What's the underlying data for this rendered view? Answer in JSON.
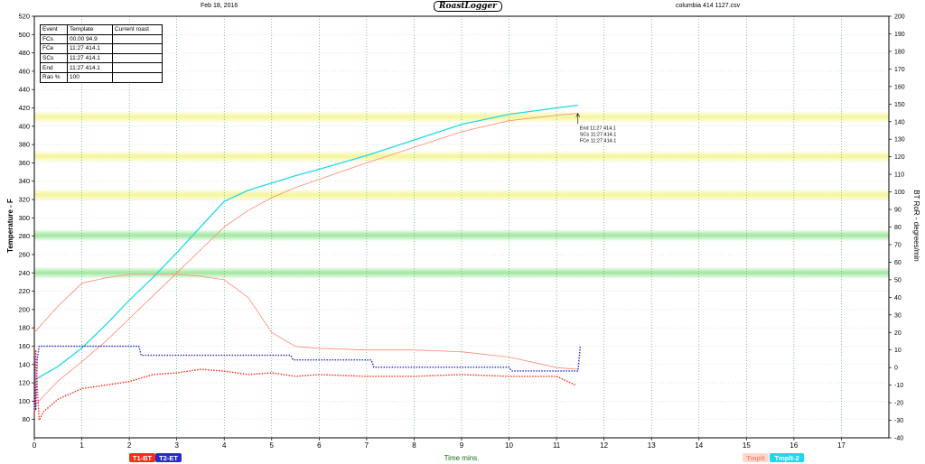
{
  "header": {
    "date": "Feb 18, 2016",
    "logo": "RoastLogger",
    "filename": "columbia 414 1127.csv"
  },
  "event_table": {
    "headers": [
      "Event",
      "Template",
      "Current roast"
    ],
    "rows": [
      [
        "FCs",
        "00.00 94.9",
        ""
      ],
      [
        "FCe",
        "11:27 414.1",
        ""
      ],
      [
        "SCs",
        "11:27 414.1",
        ""
      ],
      [
        "End",
        "11:27 414.1",
        ""
      ],
      [
        "Rao %",
        "100",
        ""
      ]
    ]
  },
  "end_annotations": [
    "End 11:27 414.1",
    "SCs 11:27 414.1",
    "FCe 11:27 414.1"
  ],
  "legend": {
    "left": [
      "T1-BT",
      "T2-ET"
    ],
    "right": [
      "Tmplt",
      "Tmplt-2"
    ]
  },
  "colors": {
    "bt": "#ff2a1a",
    "et": "#2a2acc",
    "tmplt_bt": "#ff8a70",
    "tmplt_et": "#22d8e8",
    "band_yellow": "#f5f59a",
    "band_green": "#9fe89f",
    "grid_vline": "#3aa83a"
  },
  "chart_data": {
    "type": "line",
    "xlabel": "Time mins.",
    "ylabel": "Temperature - F",
    "y2label": "BT RoR - degrees/min",
    "xlim": [
      0,
      18
    ],
    "ylim": [
      60,
      520
    ],
    "y2lim": [
      -40,
      200
    ],
    "xticks": [
      "0",
      "1",
      "2",
      "3",
      "4",
      "5",
      "6",
      "7",
      "8",
      "9",
      "10",
      "11",
      "12",
      "13",
      "14",
      "15",
      "16",
      "17"
    ],
    "yticks": [
      "80",
      "100",
      "120",
      "140",
      "160",
      "180",
      "200",
      "220",
      "240",
      "260",
      "280",
      "300",
      "320",
      "340",
      "360",
      "380",
      "400",
      "420",
      "440",
      "460",
      "480",
      "500",
      "520"
    ],
    "y2ticks": [
      "-40",
      "-30",
      "-20",
      "-10",
      "0",
      "10",
      "20",
      "30",
      "40",
      "50",
      "60",
      "70",
      "80",
      "90",
      "100",
      "110",
      "120",
      "130",
      "140",
      "150",
      "160",
      "170",
      "180",
      "190",
      "200"
    ],
    "bands": [
      {
        "color": "yellow",
        "y": 410
      },
      {
        "color": "yellow",
        "y": 367
      },
      {
        "color": "yellow",
        "y": 325
      },
      {
        "color": "green",
        "y": 281
      },
      {
        "color": "green",
        "y": 240
      }
    ],
    "series": [
      {
        "name": "Tmplt-2",
        "axis": "left",
        "style": "solid",
        "x": [
          0,
          0.5,
          1,
          1.5,
          2,
          2.5,
          3,
          3.5,
          4,
          4.5,
          5,
          5.5,
          6,
          7,
          8,
          9,
          10,
          11,
          11.45
        ],
        "y": [
          123,
          138,
          158,
          183,
          210,
          235,
          262,
          290,
          318,
          330,
          338,
          346,
          353,
          368,
          385,
          402,
          413,
          420,
          423
        ]
      },
      {
        "name": "Tmplt",
        "axis": "left",
        "style": "solid",
        "x": [
          0,
          0.5,
          1,
          1.5,
          2,
          2.5,
          3,
          3.5,
          4,
          4.5,
          5,
          5.5,
          6,
          7,
          8,
          9,
          10,
          11,
          11.45
        ],
        "y": [
          95,
          122,
          143,
          165,
          190,
          215,
          240,
          265,
          290,
          308,
          322,
          333,
          342,
          360,
          377,
          394,
          406,
          412,
          414
        ]
      },
      {
        "name": "Tmplt RoR",
        "axis": "right",
        "style": "solid",
        "x": [
          0,
          0.5,
          1,
          1.5,
          2,
          2.5,
          3,
          3.5,
          4,
          4.5,
          5,
          5.5,
          6,
          7,
          8,
          9,
          10,
          11,
          11.45
        ],
        "y": [
          20,
          35,
          48,
          51,
          53,
          53,
          53,
          52,
          50,
          40,
          20,
          12,
          11,
          10,
          10,
          9,
          6,
          0,
          -1
        ]
      },
      {
        "name": "T2-ET",
        "axis": "left",
        "style": "dotted",
        "x": [
          0,
          0.03,
          0.06,
          0.1,
          2.2,
          2.25,
          5.4,
          5.45,
          7.1,
          7.15,
          10,
          10.05,
          11.45,
          11.5
        ],
        "y": [
          148,
          90,
          145,
          160,
          160,
          150,
          150,
          145,
          145,
          137,
          137,
          133,
          133,
          160
        ]
      },
      {
        "name": "T1-BT",
        "axis": "right",
        "style": "dotted",
        "x": [
          0,
          0.03,
          0.06,
          0.1,
          0.2,
          0.5,
          1,
          1.5,
          2,
          2.5,
          3,
          3.5,
          4,
          4.5,
          5,
          5.5,
          6,
          7,
          8,
          9,
          10,
          11,
          11.4
        ],
        "y": [
          -28,
          10,
          -10,
          -30,
          -25,
          -18,
          -12,
          -10,
          -8,
          -4,
          -3,
          -1,
          -2,
          -4,
          -3,
          -5,
          -4,
          -5,
          -5,
          -4,
          -5,
          -5,
          -10
        ]
      }
    ]
  }
}
